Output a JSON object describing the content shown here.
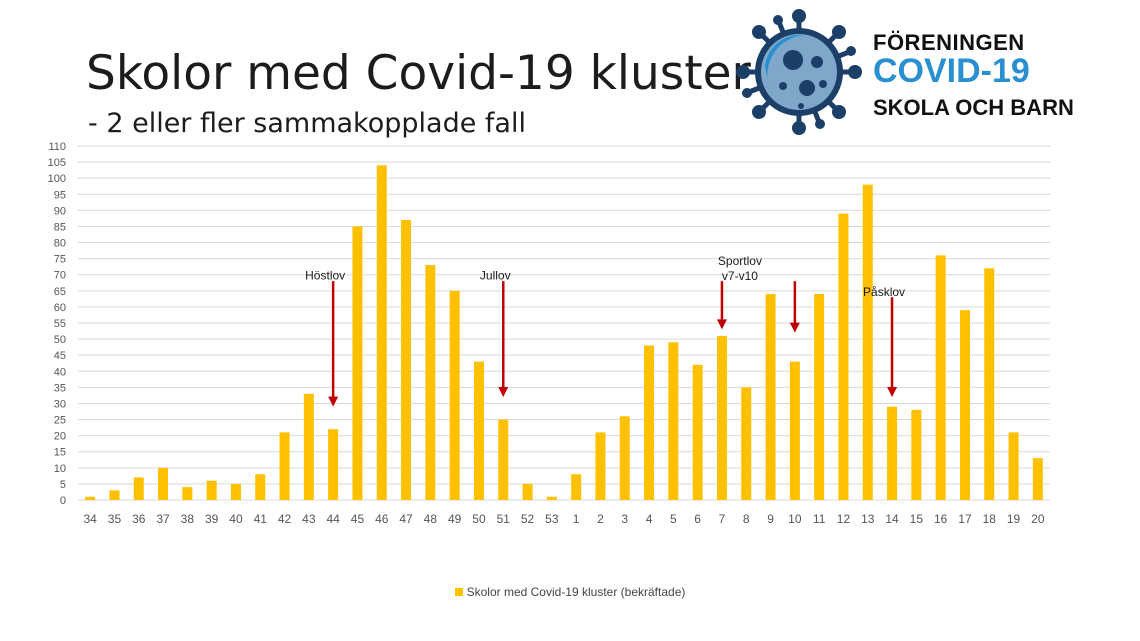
{
  "header": {
    "title": "Skolor med Covid-19 kluster",
    "subtitle": "- 2 eller fler sammakopplade fall"
  },
  "logo": {
    "icon": "virus-icon",
    "line1": "FÖRENINGEN",
    "line2": "COVID-19",
    "line3": "SKOLA OCH BARN"
  },
  "colors": {
    "bar": "#FFC000",
    "arrow": "#C00000",
    "grid": "#D9D9D9",
    "logo_blue": "#2a8fd0",
    "logo_dark": "#1b3f66"
  },
  "chart_data": {
    "type": "bar",
    "categories": [
      "34",
      "35",
      "36",
      "37",
      "38",
      "39",
      "40",
      "41",
      "42",
      "43",
      "44",
      "45",
      "46",
      "47",
      "48",
      "49",
      "50",
      "51",
      "52",
      "53",
      "1",
      "2",
      "3",
      "4",
      "5",
      "6",
      "7",
      "8",
      "9",
      "10",
      "11",
      "12",
      "13",
      "14",
      "15",
      "16",
      "17",
      "18",
      "19",
      "20"
    ],
    "series": [
      {
        "name": "Skolor med Covid-19 kluster (bekräftade)",
        "values": [
          1,
          3,
          7,
          10,
          4,
          6,
          5,
          8,
          21,
          33,
          22,
          85,
          104,
          87,
          73,
          65,
          43,
          25,
          5,
          1,
          8,
          21,
          26,
          48,
          49,
          42,
          51,
          35,
          64,
          43,
          64,
          89,
          98,
          29,
          28,
          76,
          59,
          72,
          21,
          13
        ]
      }
    ],
    "ylim": [
      0,
      110
    ],
    "yticks": [
      "0",
      "5",
      "10",
      "15",
      "20",
      "25",
      "30",
      "35",
      "40",
      "45",
      "50",
      "55",
      "60",
      "65",
      "70",
      "75",
      "80",
      "85",
      "90",
      "95",
      "100",
      "105",
      "110"
    ],
    "grid": true,
    "legend": "bottom",
    "annotations": [
      {
        "category": "44",
        "lines": [
          "Höstlov"
        ],
        "arrow_from": 68,
        "arrow_to": 29,
        "arrows": 1
      },
      {
        "category": "51",
        "lines": [
          "Jullov"
        ],
        "arrow_from": 68,
        "arrow_to": 32,
        "arrows": 1
      },
      {
        "category": "7",
        "lines": [
          "Sportlov",
          "v7-v10"
        ],
        "arrow_from": 68,
        "arrow_to": 53,
        "arrows": 2,
        "second_category": "10",
        "second_arrow_to": 52
      },
      {
        "category": "14",
        "lines": [
          "Påsklov"
        ],
        "arrow_from": 63,
        "arrow_to": 32,
        "arrows": 1
      }
    ]
  }
}
